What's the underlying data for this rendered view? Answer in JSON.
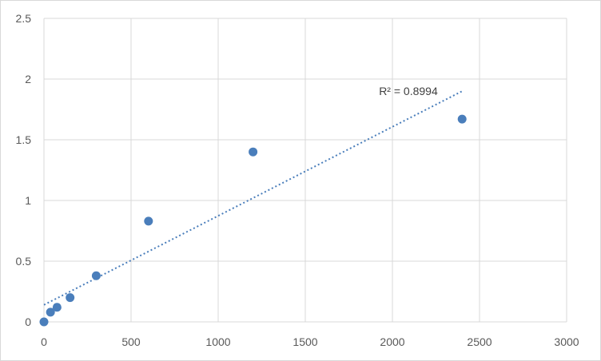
{
  "chart_data": {
    "type": "scatter",
    "title": "",
    "xlabel": "",
    "ylabel": "",
    "xlim": [
      0,
      3000
    ],
    "ylim": [
      0,
      2.5
    ],
    "x_ticks": [
      "0",
      "500",
      "1000",
      "1500",
      "2000",
      "2500",
      "3000"
    ],
    "y_ticks": [
      "0",
      "0.5",
      "1",
      "1.5",
      "2",
      "2.5"
    ],
    "grid": true,
    "legend": "none",
    "series": [
      {
        "points": [
          {
            "x": 0,
            "y": 0.0
          },
          {
            "x": 37.5,
            "y": 0.08
          },
          {
            "x": 75,
            "y": 0.12
          },
          {
            "x": 150,
            "y": 0.2
          },
          {
            "x": 300,
            "y": 0.38
          },
          {
            "x": 600,
            "y": 0.83
          },
          {
            "x": 1200,
            "y": 1.4
          },
          {
            "x": 2400,
            "y": 1.67
          }
        ],
        "color": "#4a7ebb"
      }
    ],
    "trendline": {
      "type": "linear",
      "style": "dotted",
      "color": "#4a7ebb",
      "x_range": [
        0,
        2400
      ],
      "y_start": 0.14,
      "y_end": 1.9,
      "label": "R² = 0.8994"
    }
  }
}
